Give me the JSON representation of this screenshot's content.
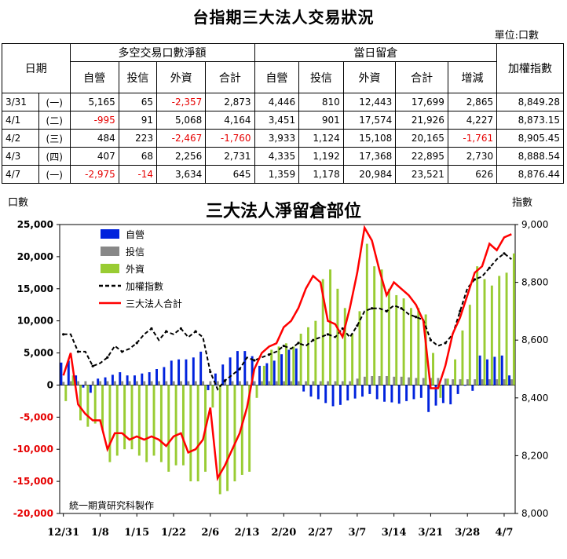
{
  "table": {
    "title": "台指期三大法人交易狀況",
    "unit": "單位:口數",
    "col_date": "日期",
    "group_net": "多空交易口數淨額",
    "group_oi": "當日留倉",
    "col_index": "加權指數",
    "sub_headers_net": [
      "自營",
      "投信",
      "外資",
      "合計"
    ],
    "sub_headers_oi": [
      "自營",
      "投信",
      "外資",
      "合計",
      "增減"
    ],
    "rows": [
      {
        "date": "3/31",
        "wd": "(一)",
        "cells": [
          "5,165",
          "65",
          "-2,357",
          "2,873",
          "4,446",
          "810",
          "12,443",
          "17,699",
          "2,865",
          "8,849.28"
        ]
      },
      {
        "date": "4/1",
        "wd": "(二)",
        "cells": [
          "-995",
          "91",
          "5,068",
          "4,164",
          "3,451",
          "901",
          "17,574",
          "21,926",
          "4,227",
          "8,873.15"
        ]
      },
      {
        "date": "4/2",
        "wd": "(三)",
        "cells": [
          "484",
          "223",
          "-2,467",
          "-1,760",
          "3,933",
          "1,124",
          "15,108",
          "20,165",
          "-1,761",
          "8,905.45"
        ]
      },
      {
        "date": "4/3",
        "wd": "(四)",
        "cells": [
          "407",
          "68",
          "2,256",
          "2,731",
          "4,335",
          "1,192",
          "17,368",
          "22,895",
          "2,730",
          "8,888.54"
        ]
      },
      {
        "date": "4/7",
        "wd": "(一)",
        "cells": [
          "-2,975",
          "-14",
          "3,634",
          "645",
          "1,359",
          "1,178",
          "20,984",
          "23,521",
          "626",
          "8,876.44"
        ]
      }
    ]
  },
  "chart_data": {
    "type": "bar",
    "title": "三大法人淨留倉部位",
    "ylabel_left": "口數",
    "ylabel_right": "指數",
    "ylim_left": [
      -20000,
      25000
    ],
    "yticks_left": [
      "25,000",
      "20,000",
      "15,000",
      "10,000",
      "5,000",
      "0",
      "-5,000",
      "-10,000",
      "-15,000",
      "-20,000"
    ],
    "ylim_right": [
      8000,
      9000
    ],
    "yticks_right": [
      "9,000",
      "8,800",
      "8,600",
      "8,400",
      "8,200",
      "8,000"
    ],
    "xtick_labels": [
      "12/31",
      "1/8",
      "1/15",
      "1/22",
      "2/6",
      "2/13",
      "2/20",
      "2/27",
      "3/7",
      "3/14",
      "3/21",
      "3/28",
      "4/7"
    ],
    "xtick_positions": [
      0,
      5,
      10,
      15,
      20,
      25,
      30,
      35,
      40,
      45,
      50,
      55,
      60
    ],
    "credit": "統一期貨研究科製作",
    "legend_position": "top-left",
    "colors": {
      "dealer": "#0022dd",
      "trust": "#888888",
      "foreign": "#99cc33",
      "index": "#000000",
      "total": "#ff0000"
    },
    "series": [
      {
        "name": "自營",
        "kind": "bar",
        "values": [
          3500,
          3800,
          1500,
          -400,
          -1200,
          1000,
          1200,
          1600,
          2000,
          1500,
          1500,
          1800,
          2000,
          2500,
          2800,
          3800,
          4000,
          4000,
          4300,
          5200,
          -800,
          1800,
          3200,
          4300,
          5300,
          5300,
          4500,
          3000,
          3400,
          3800,
          4800,
          5500,
          5700,
          -1000,
          -1800,
          -2200,
          -2800,
          -3300,
          -3100,
          -2400,
          -2100,
          -1800,
          -1400,
          -2200,
          -2600,
          -2700,
          -2900,
          -2500,
          -2200,
          -2000,
          -4200,
          -3200,
          -2800,
          -3000,
          -1400,
          -100,
          -900,
          4600,
          4000,
          4400,
          4600,
          1500
        ]
      },
      {
        "name": "投信",
        "kind": "bar",
        "values": [
          500,
          600,
          600,
          600,
          600,
          600,
          600,
          600,
          600,
          600,
          600,
          600,
          600,
          600,
          600,
          600,
          600,
          600,
          600,
          600,
          600,
          600,
          600,
          600,
          600,
          600,
          600,
          600,
          600,
          600,
          600,
          600,
          600,
          600,
          600,
          600,
          600,
          600,
          600,
          600,
          1000,
          1300,
          1400,
          1400,
          1400,
          1300,
          1300,
          1200,
          1100,
          1100,
          1100,
          1100,
          1000,
          900,
          900,
          900,
          900,
          900,
          900,
          900,
          900,
          900
        ]
      },
      {
        "name": "外資",
        "kind": "bar",
        "values": [
          -2500,
          1500,
          -5500,
          -6500,
          -6000,
          -7000,
          -12000,
          -11000,
          -10000,
          -10000,
          -11000,
          -12000,
          -11000,
          -12000,
          -13500,
          -12500,
          -12500,
          -15000,
          -15000,
          -13500,
          -3500,
          -17000,
          -16500,
          -15000,
          -14000,
          -13500,
          -2000,
          3000,
          5500,
          6000,
          6500,
          6000,
          8000,
          9000,
          10000,
          16500,
          18000,
          15000,
          12000,
          8000,
          11500,
          22000,
          18500,
          18000,
          15000,
          14000,
          13500,
          12000,
          12000,
          11000,
          5000,
          -2000,
          1000,
          4000,
          8500,
          12500,
          18500,
          16500,
          15500,
          17000,
          17500,
          20500
        ]
      },
      {
        "name": "加權指數",
        "kind": "line",
        "values": [
          8620,
          8620,
          8560,
          8560,
          8510,
          8520,
          8540,
          8580,
          8560,
          8570,
          8590,
          8620,
          8640,
          8600,
          8630,
          8620,
          8640,
          8610,
          8630,
          8610,
          8490,
          8430,
          8460,
          8480,
          8500,
          8540,
          8530,
          8540,
          8550,
          8560,
          8580,
          8570,
          8590,
          8580,
          8600,
          8610,
          8620,
          8610,
          8640,
          8610,
          8650,
          8700,
          8710,
          8710,
          8700,
          8720,
          8710,
          8690,
          8680,
          8670,
          8600,
          8580,
          8590,
          8620,
          8700,
          8780,
          8810,
          8820,
          8850,
          8880,
          8900,
          8880
        ]
      },
      {
        "name": "三大法人合計",
        "kind": "line",
        "values": [
          1500,
          5000,
          -3000,
          -4500,
          -5500,
          -5500,
          -10000,
          -7500,
          -7500,
          -8500,
          -8000,
          -8500,
          -8000,
          -8500,
          -9500,
          -8000,
          -7500,
          -10500,
          -10000,
          -8500,
          -3500,
          -14500,
          -12500,
          -10000,
          -7500,
          -3500,
          2500,
          5000,
          6000,
          6500,
          9000,
          10000,
          12000,
          15000,
          17000,
          16000,
          10000,
          9500,
          7500,
          12000,
          17500,
          24500,
          22500,
          18000,
          14000,
          16000,
          15000,
          14000,
          12500,
          10000,
          -500,
          -500,
          3000,
          8000,
          10500,
          14000,
          17500,
          18500,
          22000,
          21000,
          23000,
          23500
        ]
      }
    ]
  }
}
